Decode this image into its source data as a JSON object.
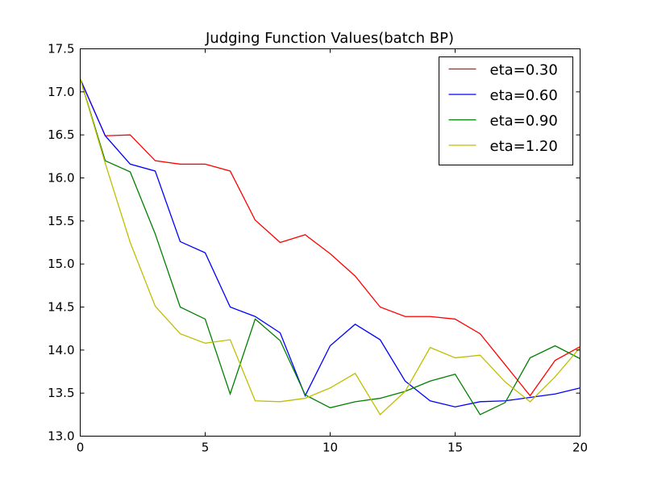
{
  "chart_data": {
    "type": "line",
    "title": "Judging Function Values(batch BP)",
    "xlabel": "",
    "ylabel": "",
    "xlim": [
      0,
      20
    ],
    "ylim": [
      13.0,
      17.5
    ],
    "xticks": [
      0,
      5,
      10,
      15,
      20
    ],
    "yticks": [
      13.0,
      13.5,
      14.0,
      14.5,
      15.0,
      15.5,
      16.0,
      16.5,
      17.0,
      17.5
    ],
    "x": [
      0,
      1,
      2,
      3,
      4,
      5,
      6,
      7,
      8,
      9,
      10,
      11,
      12,
      13,
      14,
      15,
      16,
      17,
      18,
      19,
      20
    ],
    "grid": false,
    "legend_position": "top-right",
    "series": [
      {
        "name": "eta=0.30",
        "color": "#ff0000",
        "values": [
          17.15,
          16.49,
          16.5,
          16.2,
          16.16,
          16.16,
          16.08,
          15.51,
          15.25,
          15.34,
          15.12,
          14.86,
          14.5,
          14.39,
          14.39,
          14.36,
          14.19,
          13.83,
          13.47,
          13.88,
          14.04
        ]
      },
      {
        "name": "eta=0.60",
        "color": "#0000ff",
        "values": [
          17.15,
          16.49,
          16.16,
          16.08,
          15.26,
          15.13,
          14.5,
          14.39,
          14.2,
          13.47,
          14.05,
          14.3,
          14.12,
          13.64,
          13.41,
          13.34,
          13.4,
          13.41,
          13.45,
          13.49,
          13.56
        ]
      },
      {
        "name": "eta=0.90",
        "color": "#008000",
        "values": [
          17.15,
          16.2,
          16.07,
          15.35,
          14.5,
          14.36,
          13.49,
          14.36,
          14.11,
          13.48,
          13.33,
          13.4,
          13.44,
          13.52,
          13.64,
          13.72,
          13.25,
          13.39,
          13.91,
          14.05,
          13.9
        ]
      },
      {
        "name": "eta=1.20",
        "color": "#bfbf00",
        "values": [
          17.15,
          16.17,
          15.25,
          14.51,
          14.19,
          14.08,
          14.12,
          13.41,
          13.4,
          13.44,
          13.56,
          13.73,
          13.25,
          13.52,
          14.03,
          13.91,
          13.94,
          13.63,
          13.4,
          13.69,
          14.03
        ]
      }
    ]
  }
}
